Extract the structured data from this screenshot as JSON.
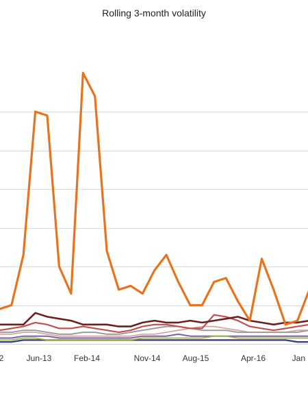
{
  "chart_data": {
    "type": "line",
    "title": "Rolling 3-month volatility",
    "xlabel": "",
    "ylabel": "",
    "x_tick_labels": [
      "2",
      "Jun-13",
      "Feb-14",
      "Nov-14",
      "Aug-15",
      "Apr-16",
      "Jan"
    ],
    "grid": true,
    "legend": "none",
    "x": [
      "Oct-12",
      "Dec-12",
      "Feb-13",
      "Apr-13",
      "Jun-13",
      "Aug-13",
      "Oct-13",
      "Dec-13",
      "Feb-14",
      "Apr-14",
      "Jun-14",
      "Aug-14",
      "Oct-14",
      "Dec-14",
      "Feb-15",
      "Apr-15",
      "Jun-15",
      "Aug-15",
      "Oct-15",
      "Dec-15",
      "Feb-16",
      "Apr-16",
      "Jun-16",
      "Aug-16",
      "Oct-16",
      "Dec-16",
      "Feb-17",
      "Mar-17"
    ],
    "series": [
      {
        "color": "#e8731c",
        "width": 3.2,
        "values": [
          1.0,
          0.9,
          1.0,
          2.3,
          6.0,
          5.9,
          2.0,
          1.3,
          7.0,
          6.4,
          2.4,
          1.4,
          1.5,
          1.3,
          1.9,
          2.3,
          1.6,
          1.0,
          1.0,
          1.6,
          1.7,
          1.1,
          0.6,
          2.2,
          1.4,
          0.5,
          0.6,
          1.4
        ]
      },
      {
        "color": "#6b1f1f",
        "width": 2.6,
        "values": [
          0.55,
          0.5,
          0.5,
          0.5,
          0.8,
          0.7,
          0.65,
          0.6,
          0.5,
          0.5,
          0.5,
          0.45,
          0.45,
          0.55,
          0.6,
          0.55,
          0.55,
          0.6,
          0.55,
          0.6,
          0.65,
          0.7,
          0.6,
          0.55,
          0.5,
          0.55,
          0.55,
          0.6
        ]
      },
      {
        "color": "#c0504d",
        "width": 2.2,
        "values": [
          0.3,
          0.35,
          0.4,
          0.45,
          0.55,
          0.5,
          0.4,
          0.4,
          0.45,
          0.4,
          0.35,
          0.3,
          0.35,
          0.45,
          0.5,
          0.5,
          0.45,
          0.4,
          0.4,
          0.75,
          0.7,
          0.6,
          0.45,
          0.4,
          0.35,
          0.4,
          0.45,
          0.5
        ]
      },
      {
        "color": "#9b9b9b",
        "width": 2.0,
        "values": [
          0.3,
          0.3,
          0.3,
          0.35,
          0.35,
          0.3,
          0.25,
          0.25,
          0.3,
          0.3,
          0.25,
          0.25,
          0.3,
          0.35,
          0.4,
          0.45,
          0.45,
          0.4,
          0.35,
          0.35,
          0.35,
          0.3,
          0.3,
          0.3,
          0.3,
          0.3,
          0.3,
          0.35
        ]
      },
      {
        "color": "#d8a4a0",
        "width": 1.8,
        "values": [
          0.2,
          0.25,
          0.25,
          0.3,
          0.3,
          0.25,
          0.2,
          0.2,
          0.2,
          0.2,
          0.2,
          0.2,
          0.2,
          0.25,
          0.25,
          0.3,
          0.35,
          0.4,
          0.45,
          0.45,
          0.4,
          0.35,
          0.3,
          0.3,
          0.3,
          0.3,
          0.35,
          0.35
        ]
      },
      {
        "color": "#9ab83b",
        "width": 1.8,
        "values": [
          0.1,
          0.1,
          0.1,
          0.15,
          0.15,
          0.1,
          0.1,
          0.1,
          0.1,
          0.1,
          0.1,
          0.1,
          0.1,
          0.15,
          0.15,
          0.15,
          0.15,
          0.15,
          0.15,
          0.2,
          0.2,
          0.15,
          0.15,
          0.15,
          0.15,
          0.15,
          0.15,
          0.15
        ]
      },
      {
        "color": "#7a5fa6",
        "width": 2.0,
        "values": [
          0.15,
          0.15,
          0.15,
          0.2,
          0.2,
          0.2,
          0.15,
          0.15,
          0.15,
          0.15,
          0.15,
          0.15,
          0.15,
          0.2,
          0.2,
          0.2,
          0.25,
          0.2,
          0.2,
          0.2,
          0.2,
          0.2,
          0.2,
          0.2,
          0.2,
          0.2,
          0.2,
          0.2
        ]
      },
      {
        "color": "#3b3f8c",
        "width": 2.4,
        "values": [
          0.05,
          0.05,
          0.05,
          0.1,
          0.1,
          0.1,
          0.1,
          0.1,
          0.1,
          0.1,
          0.1,
          0.1,
          0.1,
          0.1,
          0.1,
          0.1,
          0.1,
          0.1,
          0.1,
          0.1,
          0.1,
          0.1,
          0.1,
          0.1,
          0.1,
          0.1,
          0.05,
          0.05
        ]
      }
    ],
    "ylim": [
      0,
      8
    ]
  }
}
